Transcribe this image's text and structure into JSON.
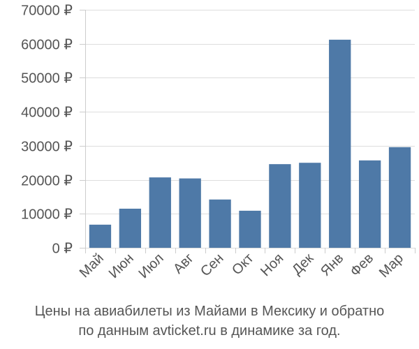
{
  "chart_data": {
    "type": "bar",
    "categories": [
      "Май",
      "Июн",
      "Июл",
      "Авг",
      "Сен",
      "Окт",
      "Ноя",
      "Дек",
      "Янв",
      "Фев",
      "Мар"
    ],
    "values": [
      6800,
      11500,
      20700,
      20400,
      14200,
      10900,
      24600,
      25000,
      61200,
      25700,
      29600
    ],
    "ylim": [
      0,
      70000
    ],
    "yticks": [
      0,
      10000,
      20000,
      30000,
      40000,
      50000,
      60000,
      70000
    ],
    "ytick_labels": [
      "0 ₽",
      "10000 ₽",
      "20000 ₽",
      "30000 ₽",
      "40000 ₽",
      "50000 ₽",
      "60000 ₽",
      "70000 ₽"
    ],
    "bar_color": "#4e79a7",
    "grid": "horizontal",
    "caption": [
      "Цены на авиабилеты из Майами в Мексику и обратно",
      "по данным avticket.ru в динамике за год."
    ]
  }
}
